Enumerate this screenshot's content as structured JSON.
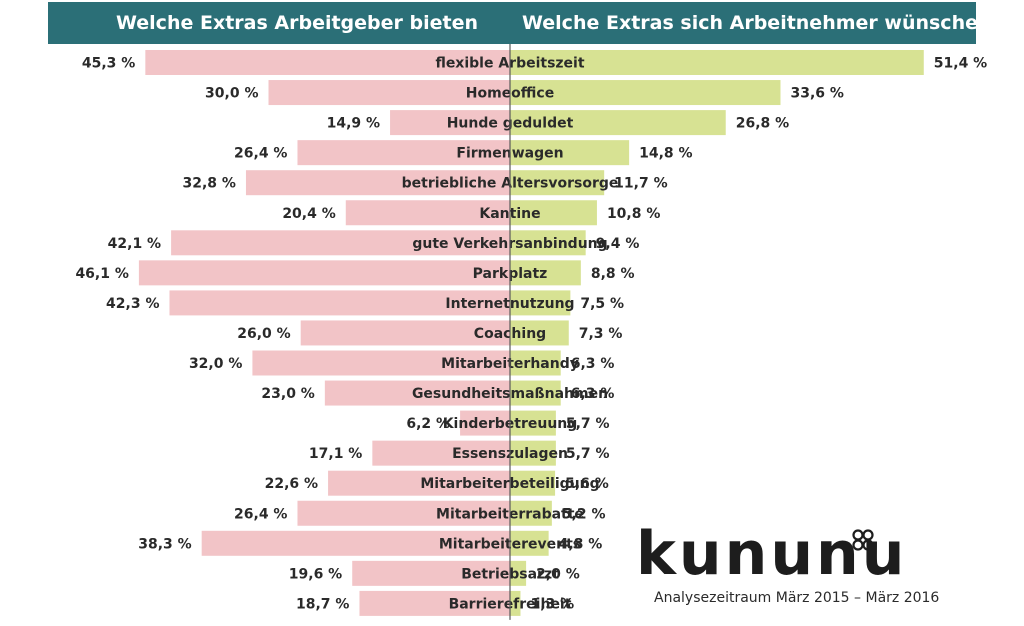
{
  "header": {
    "left_title": "Welche Extras Arbeitgeber bieten",
    "right_title": "Welche Extras sich Arbeitnehmer wünschen"
  },
  "colors": {
    "header_bg": "#2b6f77",
    "employer_bar": "#f2c4c7",
    "employee_bar": "#d7e293",
    "divider": "#5a5a5a"
  },
  "chart_data": {
    "type": "bar",
    "orientation": "horizontal-diverging",
    "categories": [
      "flexible Arbeitszeit",
      "Homeoffice",
      "Hunde geduldet",
      "Firmenwagen",
      "betriebliche Altersvorsorge",
      "Kantine",
      "gute Verkehrsanbindung",
      "Parkplatz",
      "Internetnutzung",
      "Coaching",
      "Mitarbeiterhandy",
      "Gesundheitsmaßnahmen",
      "Kinderbetreuung",
      "Essenszulagen",
      "Mitarbeiterbeteiligung",
      "Mitarbeiterrabatte",
      "Mitarbeiterevents",
      "Betriebsarzt",
      "Barrierefreiheit"
    ],
    "series": [
      {
        "name": "Welche Extras Arbeitgeber bieten",
        "values": [
          45.3,
          30.0,
          14.9,
          26.4,
          32.8,
          20.4,
          42.1,
          46.1,
          42.3,
          26.0,
          32.0,
          23.0,
          6.2,
          17.1,
          22.6,
          26.4,
          38.3,
          19.6,
          18.7
        ],
        "labels": [
          "45,3 %",
          "30,0 %",
          "14,9 %",
          "26,4 %",
          "32,8 %",
          "20,4 %",
          "42,1 %",
          "46,1 %",
          "42,3 %",
          "26,0 %",
          "32,0 %",
          "23,0 %",
          "6,2 %",
          "17,1 %",
          "22,6 %",
          "26,4 %",
          "38,3 %",
          "19,6 %",
          "18,7 %"
        ]
      },
      {
        "name": "Welche Extras sich Arbeitnehmer wünschen",
        "values": [
          51.4,
          33.6,
          26.8,
          14.8,
          11.7,
          10.8,
          9.4,
          8.8,
          7.5,
          7.3,
          6.3,
          6.3,
          5.7,
          5.7,
          5.6,
          5.2,
          4.8,
          2.0,
          1.3
        ],
        "labels": [
          "51,4 %",
          "33,6 %",
          "26,8 %",
          "14,8 %",
          "11,7 %",
          "10,8 %",
          "9,4 %",
          "8,8 %",
          "7,5 %",
          "7,3 %",
          "6,3 %",
          "6,3 %",
          "5,7 %",
          "5,7 %",
          "5,6 %",
          "5,2 %",
          "4,8 %",
          "2,0 %",
          "1,3 %"
        ]
      }
    ]
  },
  "footer": {
    "logo_text": "kununu",
    "period": "Analysezeitraum März 2015 – März 2016"
  }
}
